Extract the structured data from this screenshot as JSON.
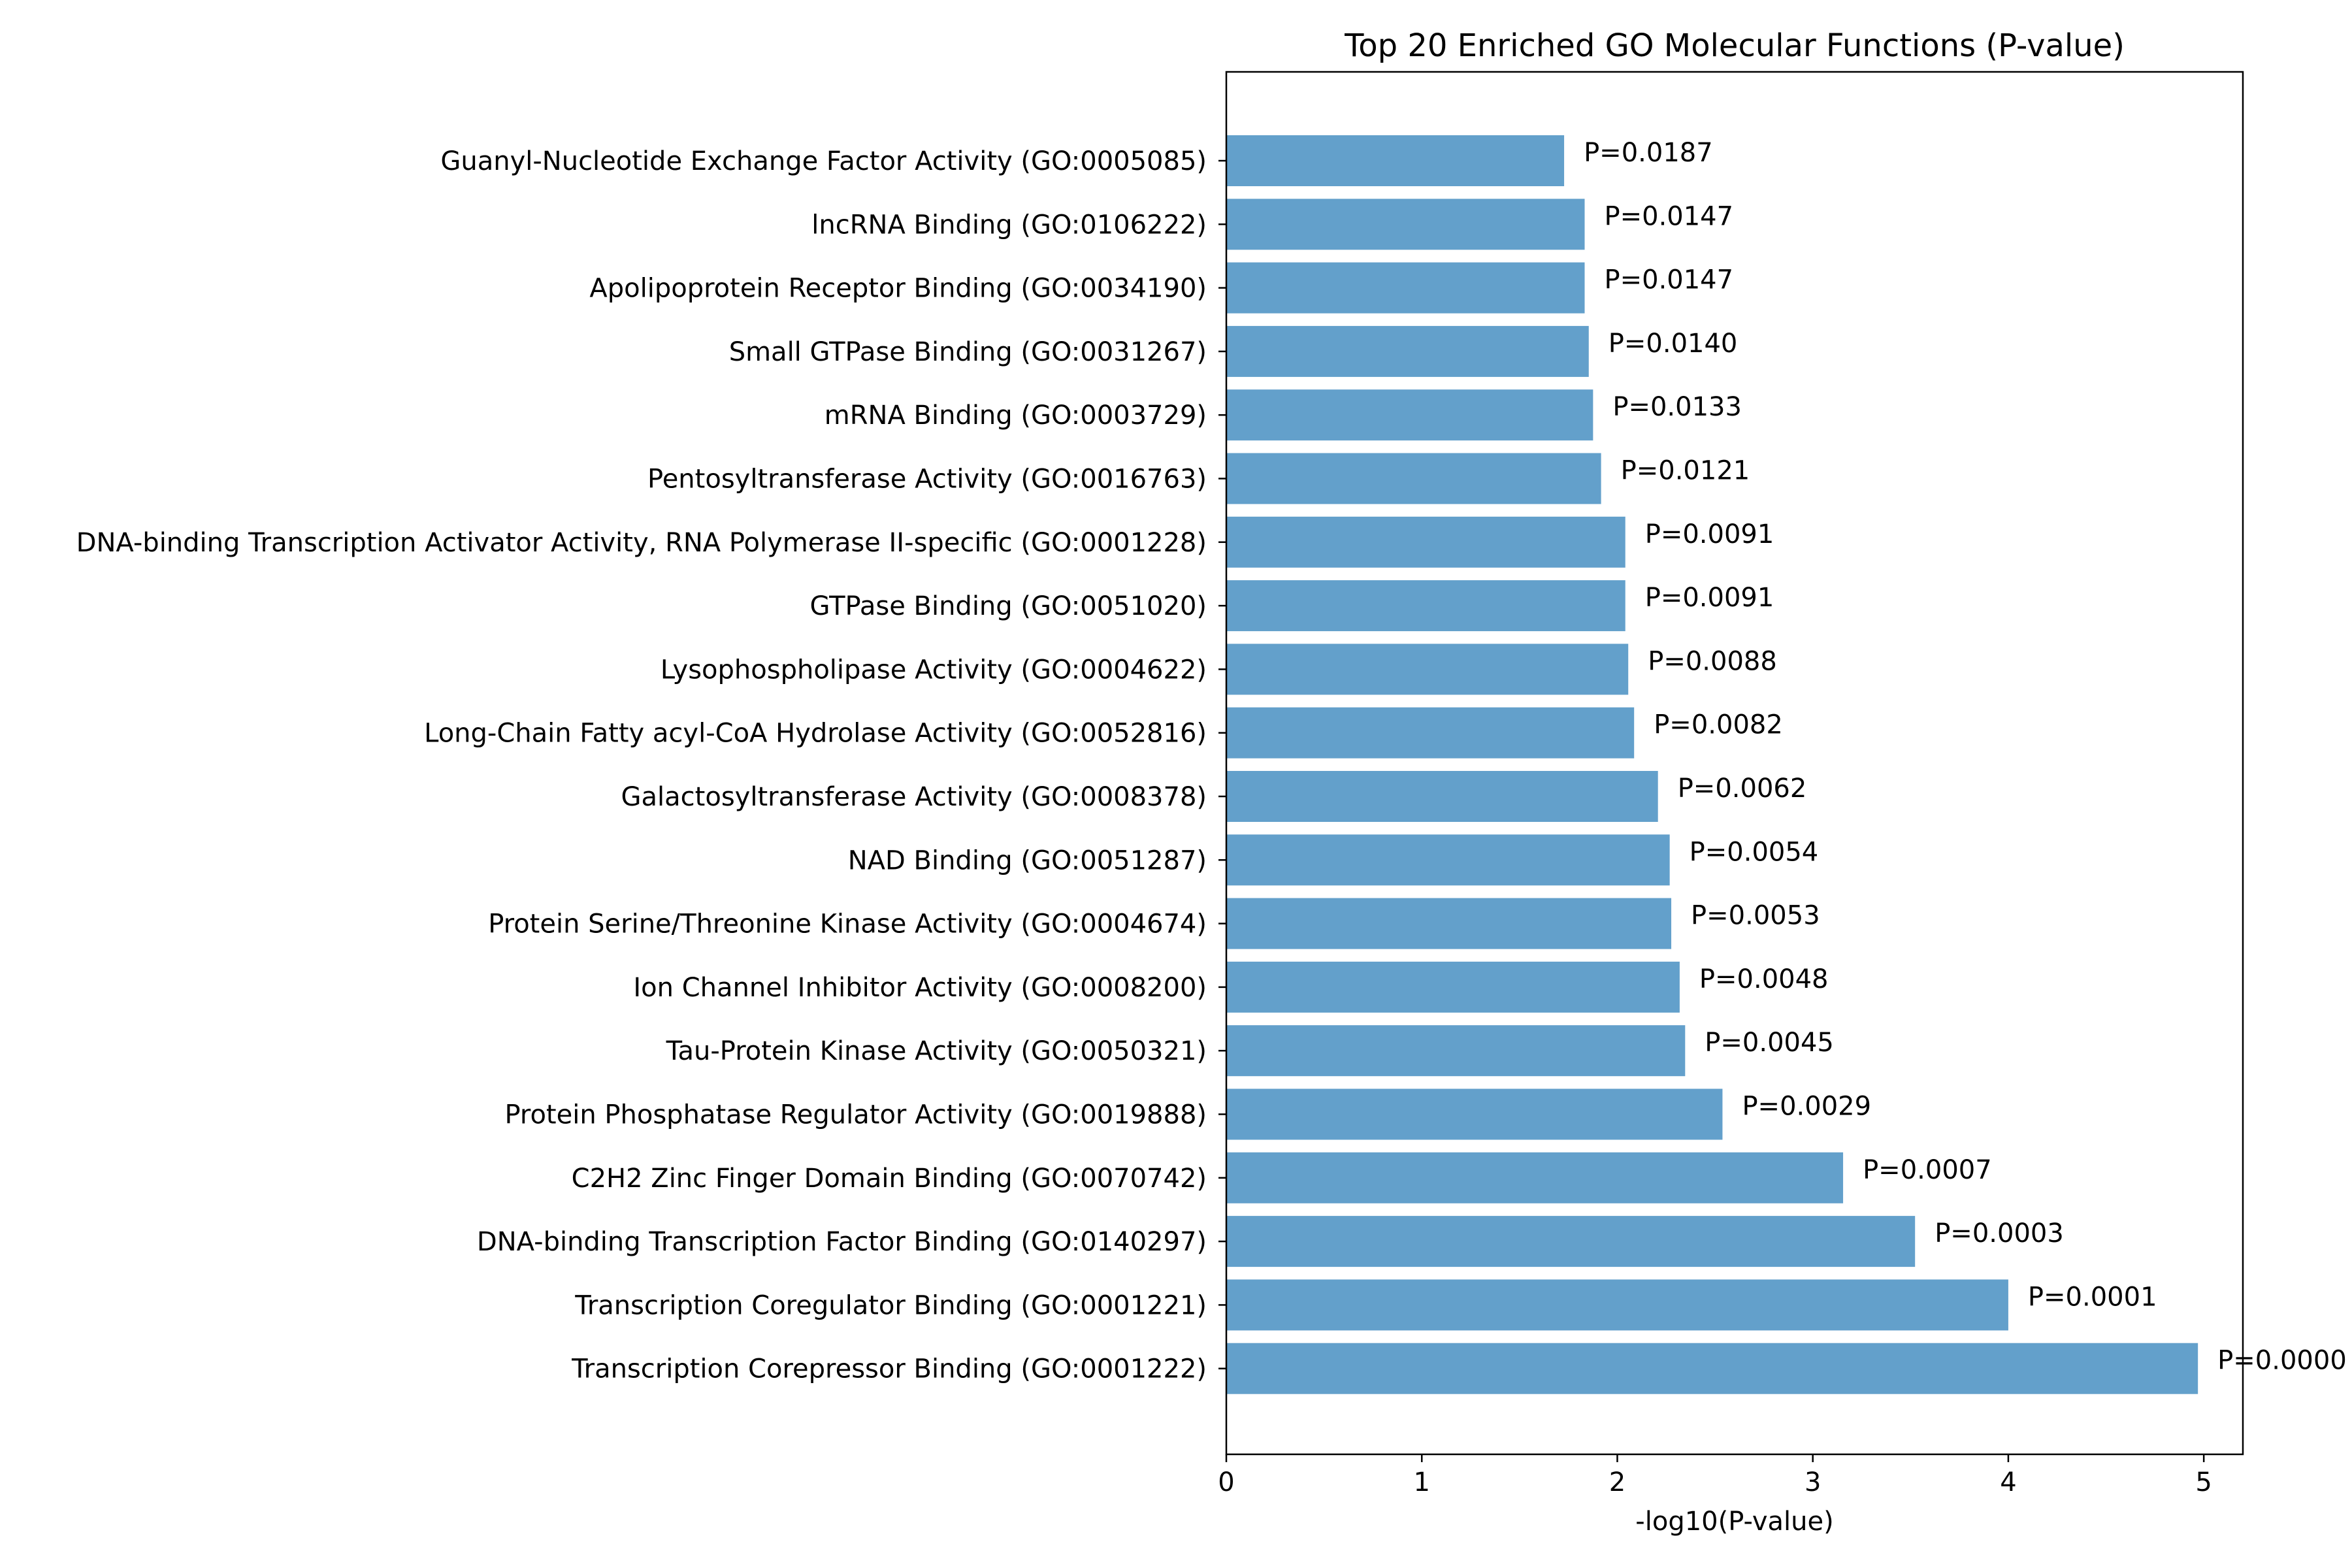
{
  "chart_data": {
    "type": "bar",
    "orientation": "horizontal",
    "title": "Top 20 Enriched GO Molecular Functions (P-value)",
    "xlabel": "-log10(P-value)",
    "ylabel": "",
    "xlim": [
      0,
      5.2
    ],
    "xticks": [
      0,
      1,
      2,
      3,
      4,
      5
    ],
    "grid": false,
    "bar_color": "#63a0cb",
    "categories": [
      "Guanyl-Nucleotide Exchange Factor Activity (GO:0005085)",
      "lncRNA Binding (GO:0106222)",
      "Apolipoprotein Receptor Binding (GO:0034190)",
      "Small GTPase Binding (GO:0031267)",
      "mRNA Binding (GO:0003729)",
      "Pentosyltransferase Activity (GO:0016763)",
      "DNA-binding Transcription Activator Activity, RNA Polymerase II-specific (GO:0001228)",
      "GTPase Binding (GO:0051020)",
      "Lysophospholipase Activity (GO:0004622)",
      "Long-Chain Fatty acyl-CoA Hydrolase Activity (GO:0052816)",
      "Galactosyltransferase Activity (GO:0008378)",
      "NAD Binding (GO:0051287)",
      "Protein Serine/Threonine Kinase Activity (GO:0004674)",
      "Ion Channel Inhibitor Activity (GO:0008200)",
      "Tau-Protein Kinase Activity (GO:0050321)",
      "Protein Phosphatase Regulator Activity (GO:0019888)",
      "C2H2 Zinc Finger Domain Binding (GO:0070742)",
      "DNA-binding Transcription Factor Binding (GO:0140297)",
      "Transcription Coregulator Binding (GO:0001221)",
      "Transcription Corepressor Binding (GO:0001222)"
    ],
    "values": [
      1.728,
      1.833,
      1.833,
      1.854,
      1.876,
      1.917,
      2.041,
      2.041,
      2.056,
      2.086,
      2.208,
      2.268,
      2.276,
      2.319,
      2.347,
      2.538,
      3.155,
      3.523,
      4.0,
      4.97
    ],
    "data_labels": [
      "P=0.0187",
      "P=0.0147",
      "P=0.0147",
      "P=0.0140",
      "P=0.0133",
      "P=0.0121",
      "P=0.0091",
      "P=0.0091",
      "P=0.0088",
      "P=0.0082",
      "P=0.0062",
      "P=0.0054",
      "P=0.0053",
      "P=0.0048",
      "P=0.0045",
      "P=0.0029",
      "P=0.0007",
      "P=0.0003",
      "P=0.0001",
      "P=0.0000"
    ]
  }
}
